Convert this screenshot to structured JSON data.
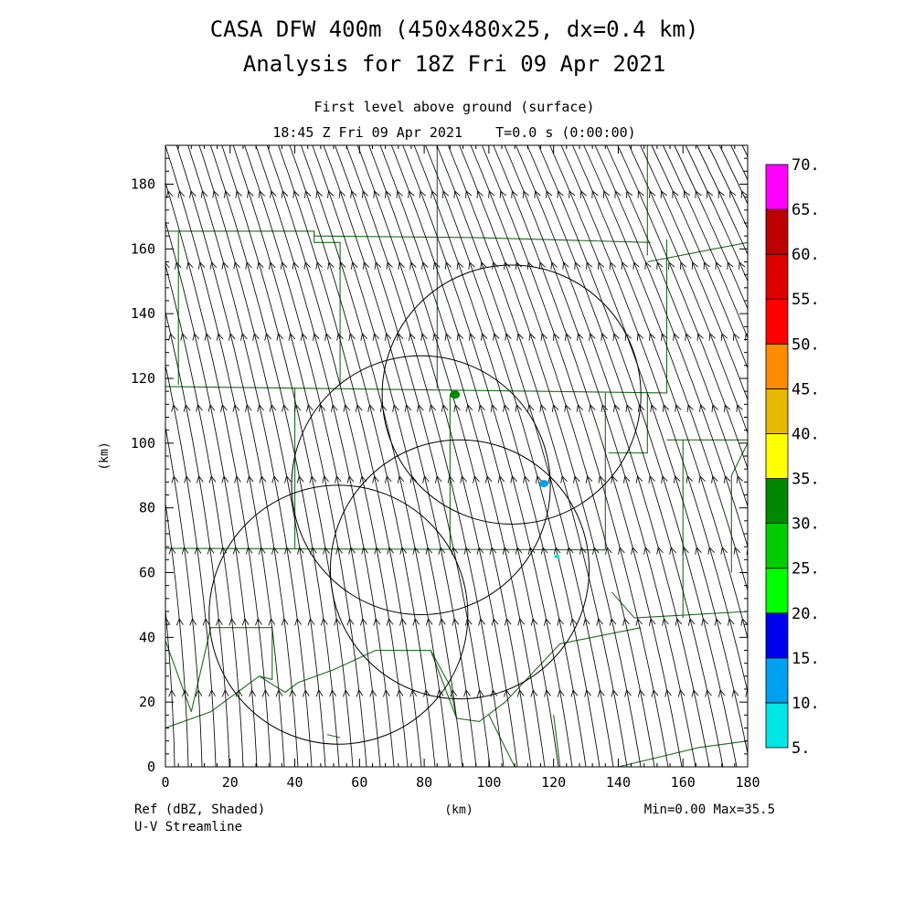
{
  "titles": {
    "main": "CASA DFW 400m (450x480x25, dx=0.4 km)",
    "analysis": "Analysis for 18Z Fri 09 Apr 2021",
    "level": "First level above ground (surface)",
    "time": "18:45 Z Fri 09 Apr 2021    T=0.0 s (0:00:00)"
  },
  "footer": {
    "field": "Ref (dBZ, Shaded)",
    "overlay": "U-V Streamline",
    "stats": "Min=0.00 Max=35.5"
  },
  "chart_data": {
    "type": "heatmap",
    "xlabel": "(km)",
    "ylabel": "(km)",
    "xlim": [
      0,
      180
    ],
    "ylim": [
      0,
      192
    ],
    "x_ticks": [
      0,
      20,
      40,
      60,
      80,
      100,
      120,
      140,
      160,
      180
    ],
    "y_ticks": [
      0,
      20,
      40,
      60,
      80,
      100,
      120,
      140,
      160,
      180
    ],
    "colorbar": {
      "levels": [
        "5.",
        "10.",
        "15.",
        "20.",
        "25.",
        "30.",
        "35.",
        "40.",
        "45.",
        "50.",
        "55.",
        "60.",
        "65.",
        "70."
      ],
      "colors": [
        "#00e5e5",
        "#00a0f0",
        "#0000ee",
        "#00ff00",
        "#00cc00",
        "#008800",
        "#ffff00",
        "#e6b800",
        "#ff8c00",
        "#ff0000",
        "#dd0000",
        "#bb0000",
        "#ff00ff"
      ]
    },
    "radar_range_rings": [
      {
        "center_km": [
          53.5,
          47
        ],
        "radius_km": 40
      },
      {
        "center_km": [
          79,
          87
        ],
        "radius_km": 40
      },
      {
        "center_km": [
          107,
          115
        ],
        "radius_km": 40
      },
      {
        "center_km": [
          91,
          61
        ],
        "radius_km": 40
      }
    ],
    "reflectivity_echoes": [
      {
        "x_km": 89.5,
        "y_km": 115,
        "dbz": 30
      },
      {
        "x_km": 117,
        "y_km": 87.5,
        "dbz": 10
      },
      {
        "x_km": 121,
        "y_km": 65,
        "dbz": 5
      }
    ],
    "wind_direction": "streamlines run from bottom to top, leaning toward the upper-left",
    "min": 0.0,
    "max": 35.5
  }
}
